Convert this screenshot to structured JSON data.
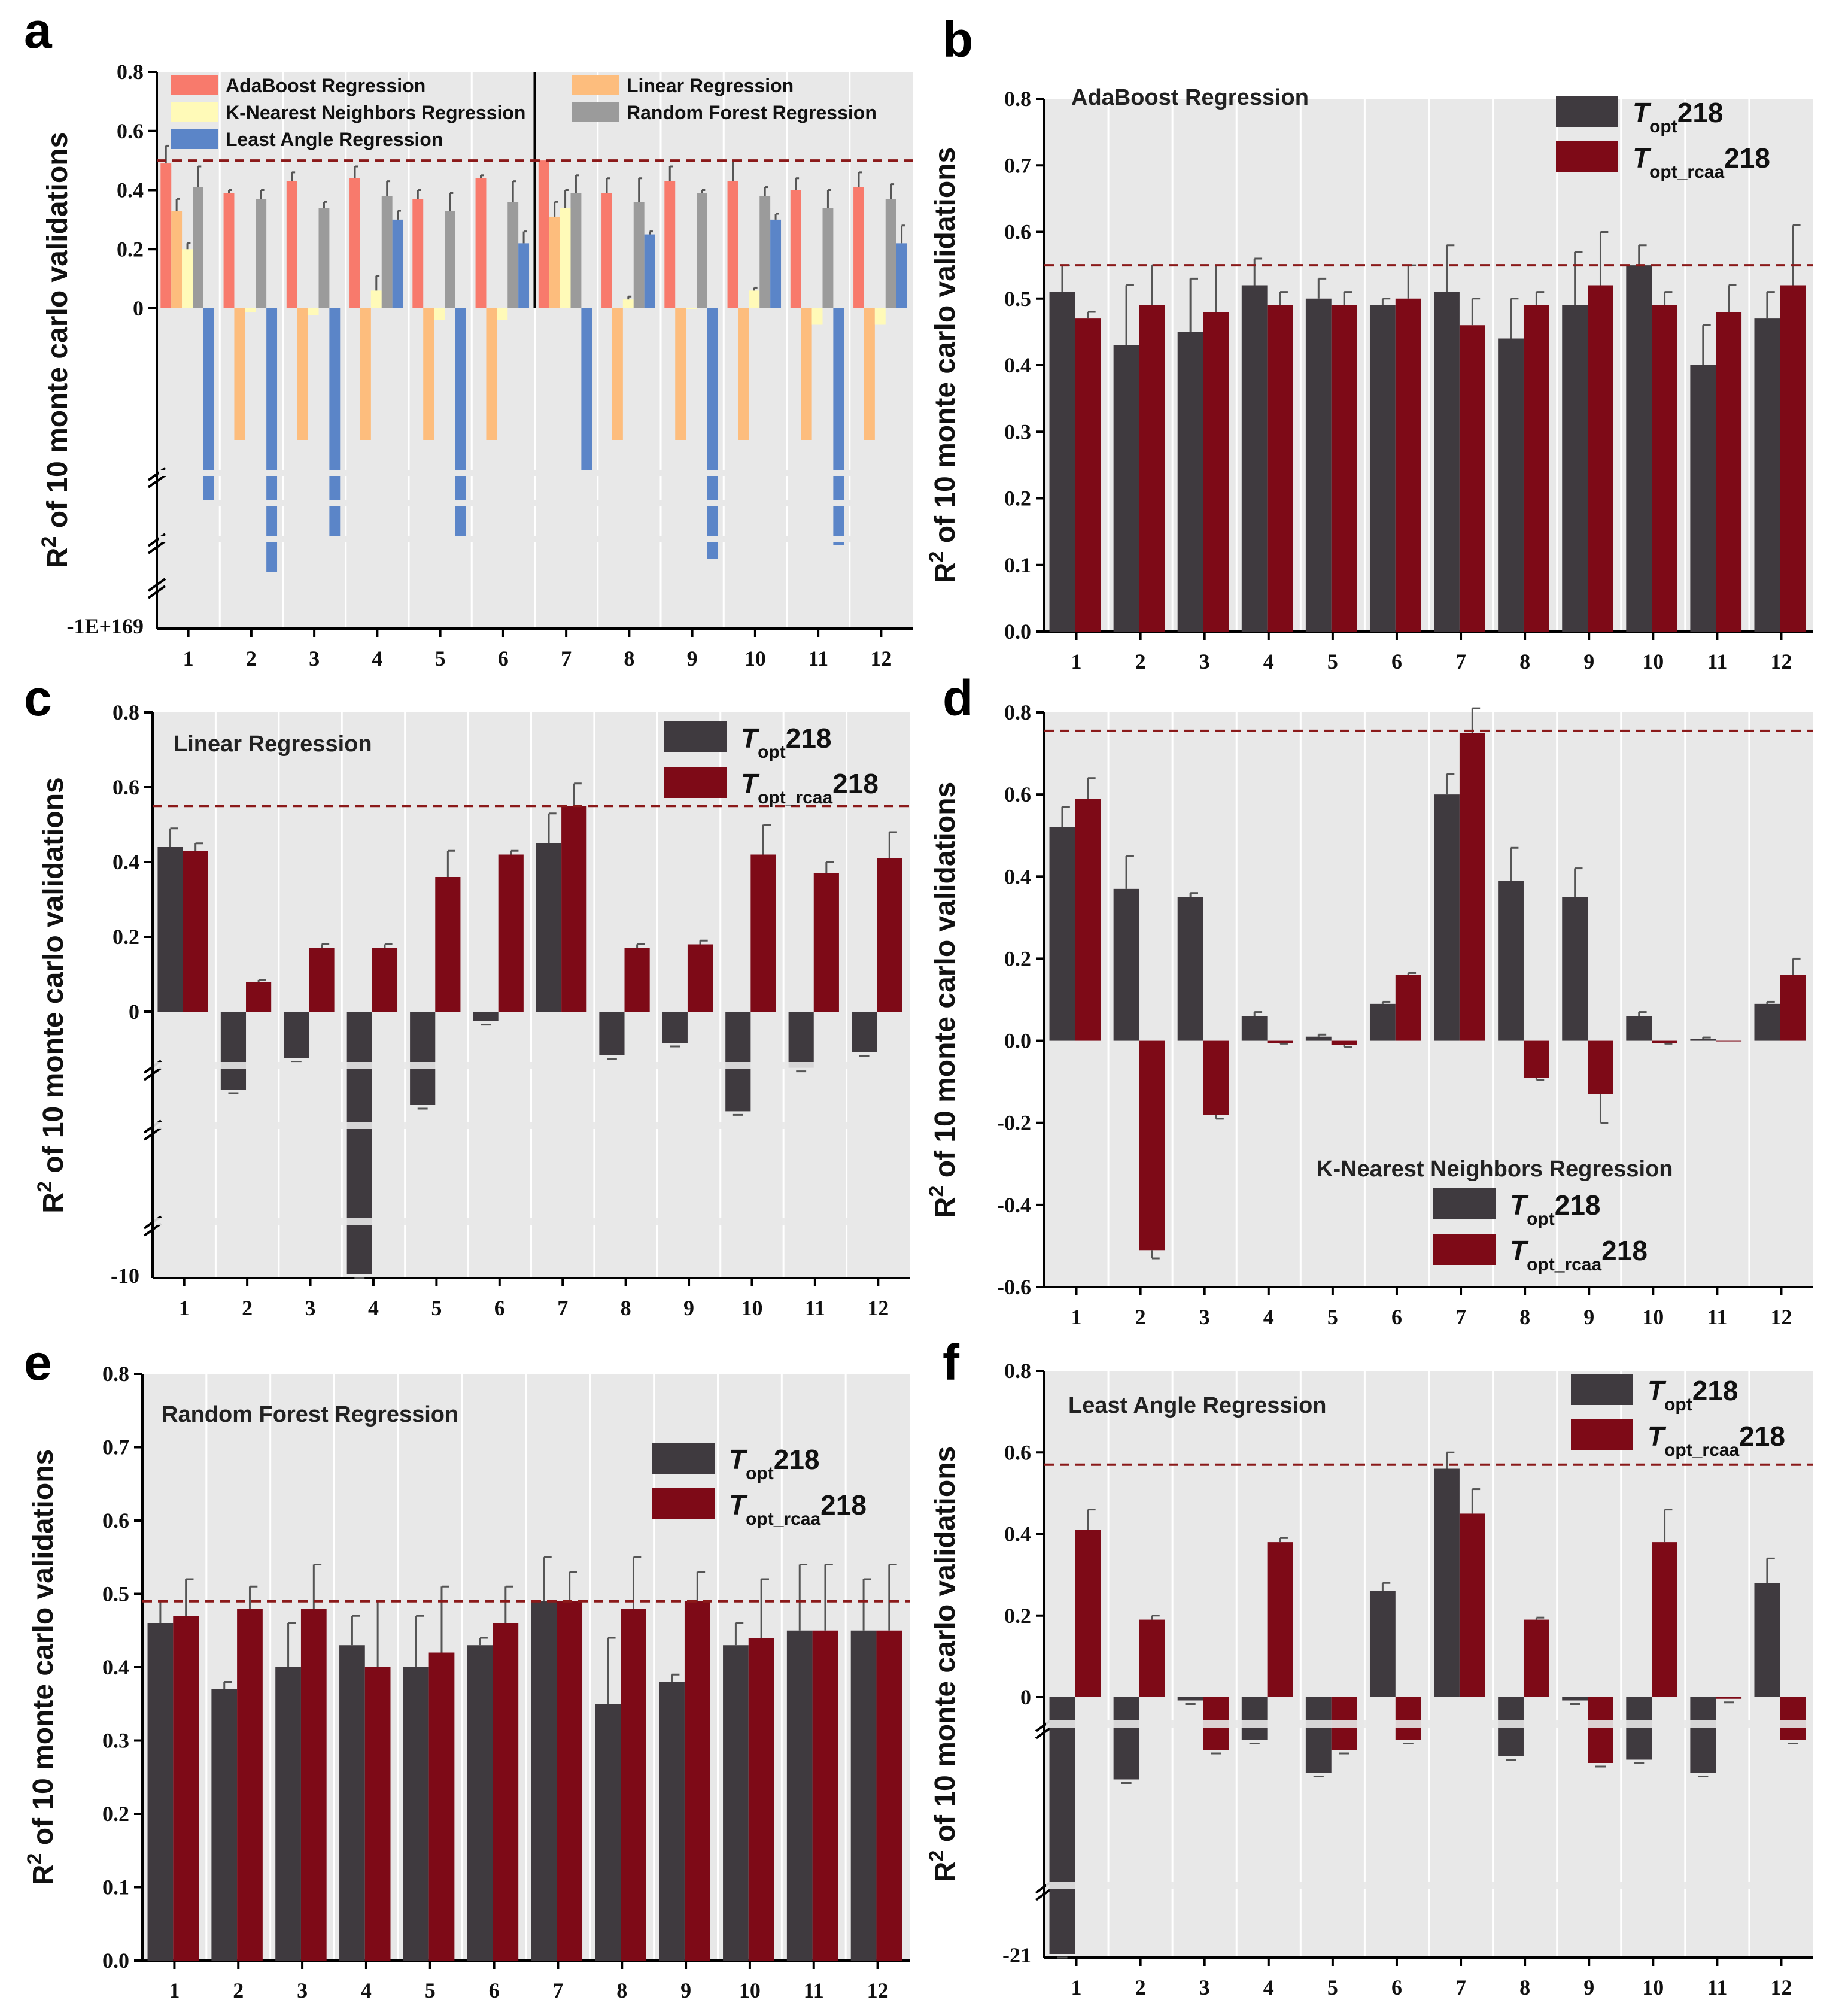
{
  "figure": {
    "y_axis_label_main": "R",
    "y_axis_label_sup": "2",
    "y_axis_label_rest": " of 10 monte carlo validations",
    "x_categories": [
      "1",
      "2",
      "3",
      "4",
      "5",
      "6",
      "7",
      "8",
      "9",
      "10",
      "11",
      "12"
    ]
  },
  "colors": {
    "topt": "#3f3a3f",
    "topt_rcaa": "#7e0a17",
    "ada": "#f87a6c",
    "linear": "#fdbd7d",
    "knn": "#fffab8",
    "rf": "#9b9b9b",
    "lar": "#5b85c8",
    "refline": "#8b1a1a"
  },
  "legend_two": {
    "s1_T": "T",
    "s1_sub": "opt",
    "s1_num": "218",
    "s2_T": "T",
    "s2_sub": "opt_rcaa",
    "s2_num": "218"
  },
  "chart_data": [
    {
      "panel": "a",
      "type": "bar",
      "title": "",
      "legend": [
        "AdaBoost Regression",
        "Linear Regression",
        "K-Nearest Neighbors Regression",
        "Random Forest Regression",
        "Least Angle Regression"
      ],
      "yticks": [
        "0.8",
        "0.6",
        "0.4",
        "0.2",
        "0"
      ],
      "ybottom_label": "-1E+169",
      "reference_line": 0.5,
      "note": "axis broken below 0; groups 1-6 use T_opt218 and 7-12 use T_opt_rcaa218",
      "series": [
        {
          "name": "AdaBoost Regression",
          "values": [
            0.49,
            0.39,
            0.43,
            0.44,
            0.37,
            0.44,
            0.5,
            0.39,
            0.43,
            0.43,
            0.4,
            0.41
          ],
          "err": [
            0.06,
            0.01,
            0.03,
            0.04,
            0.03,
            0.01,
            0.0,
            0.05,
            0.05,
            0.07,
            0.04,
            0.05
          ]
        },
        {
          "name": "Linear Regression",
          "values": [
            0.33,
            -2,
            -2,
            -2,
            -2,
            -2,
            0.31,
            -2,
            -2,
            -2,
            -2,
            -2
          ],
          "err": [
            0.04,
            0,
            0,
            0,
            0,
            0,
            0.05,
            0,
            0,
            0,
            0,
            0
          ]
        },
        {
          "name": "K-Nearest Neighbors Regression",
          "values": [
            0.2,
            -0.06,
            -0.1,
            0.06,
            -0.18,
            -0.18,
            0.34,
            0.03,
            0.0,
            0.06,
            -0.25,
            -0.25
          ],
          "err": [
            0.02,
            0.02,
            0.04,
            0.05,
            0.04,
            0.05,
            0.06,
            0.01,
            0.0,
            0.01,
            0.04,
            0.05
          ]
        },
        {
          "name": "Random Forest Regression",
          "values": [
            0.41,
            0.37,
            0.34,
            0.38,
            0.33,
            0.36,
            0.39,
            0.36,
            0.39,
            0.38,
            0.34,
            0.37
          ],
          "err": [
            0.07,
            0.03,
            0.02,
            0.05,
            0.06,
            0.07,
            0.06,
            0.08,
            0.01,
            0.03,
            0.06,
            0.05
          ]
        },
        {
          "name": "Least Angle Regression",
          "values": [
            -3,
            -4,
            -3.5,
            0.3,
            -3.5,
            0.22,
            -2.5,
            0.25,
            -3.8,
            0.3,
            -3.6,
            0.22
          ],
          "err": [
            0,
            0,
            0,
            0.03,
            0,
            0.04,
            0,
            0.01,
            0,
            0.02,
            0,
            0.06
          ]
        }
      ]
    },
    {
      "panel": "b",
      "type": "bar",
      "title": "AdaBoost Regression",
      "ylim": [
        0,
        0.8
      ],
      "yticks": [
        "0.0",
        "0.1",
        "0.2",
        "0.3",
        "0.4",
        "0.5",
        "0.6",
        "0.7",
        "0.8"
      ],
      "reference_line": 0.55,
      "series": [
        {
          "name": "Topt218",
          "values": [
            0.51,
            0.43,
            0.45,
            0.52,
            0.5,
            0.49,
            0.51,
            0.44,
            0.49,
            0.55,
            0.4,
            0.47
          ],
          "err": [
            0.04,
            0.09,
            0.08,
            0.04,
            0.03,
            0.01,
            0.07,
            0.06,
            0.08,
            0.03,
            0.06,
            0.04
          ]
        },
        {
          "name": "Topt_rcaa218",
          "values": [
            0.47,
            0.49,
            0.48,
            0.49,
            0.49,
            0.5,
            0.46,
            0.49,
            0.52,
            0.49,
            0.48,
            0.52
          ],
          "err": [
            0.01,
            0.06,
            0.07,
            0.02,
            0.02,
            0.05,
            0.04,
            0.02,
            0.08,
            0.02,
            0.04,
            0.09
          ]
        }
      ]
    },
    {
      "panel": "c",
      "type": "bar",
      "title": "Linear Regression",
      "yticks": [
        "0",
        "0.2",
        "0.4",
        "0.6",
        "0.8"
      ],
      "ybottom_label": "-10",
      "reference_line": 0.55,
      "note": "axis broken below 0",
      "series": [
        {
          "name": "Topt218",
          "values": [
            0.44,
            -2.5,
            -1.5,
            -9.5,
            -3.0,
            -0.3,
            0.45,
            -1.4,
            -1.0,
            -3.2,
            -1.8,
            -1.3
          ],
          "err": [
            0.05,
            0,
            0,
            0,
            0,
            0,
            0.08,
            0,
            0,
            0,
            0,
            0
          ]
        },
        {
          "name": "Topt_rcaa218",
          "values": [
            0.43,
            0.08,
            0.17,
            0.17,
            0.36,
            0.42,
            0.55,
            0.17,
            0.18,
            0.42,
            0.37,
            0.41
          ],
          "err": [
            0.02,
            0.005,
            0.01,
            0.01,
            0.07,
            0.01,
            0.06,
            0.01,
            0.01,
            0.08,
            0.03,
            0.07
          ]
        }
      ]
    },
    {
      "panel": "d",
      "type": "bar",
      "title": "K-Nearest Neighbors Regression",
      "ylim": [
        -0.6,
        0.8
      ],
      "yticks": [
        "-0.6",
        "-0.4",
        "-0.2",
        "0.0",
        "0.2",
        "0.4",
        "0.6",
        "0.8"
      ],
      "reference_line": 0.755,
      "series": [
        {
          "name": "Topt218",
          "values": [
            0.52,
            0.37,
            0.35,
            0.06,
            0.01,
            0.09,
            0.6,
            0.39,
            0.35,
            0.06,
            0.005,
            0.09
          ],
          "err": [
            0.05,
            0.08,
            0.01,
            0.01,
            0.005,
            0.005,
            0.05,
            0.08,
            0.07,
            0.01,
            0.003,
            0.005
          ]
        },
        {
          "name": "Topt_rcaa218",
          "values": [
            0.59,
            -0.51,
            -0.18,
            -0.005,
            -0.01,
            0.16,
            0.75,
            -0.09,
            -0.13,
            -0.005,
            0.0,
            0.16
          ],
          "err": [
            0.05,
            0.02,
            0.01,
            0.002,
            0.005,
            0.005,
            0.06,
            0.005,
            0.07,
            0.002,
            0.0,
            0.04
          ]
        }
      ]
    },
    {
      "panel": "e",
      "type": "bar",
      "title": "Random Forest Regression",
      "ylim": [
        0,
        0.8
      ],
      "yticks": [
        "0.0",
        "0.1",
        "0.2",
        "0.3",
        "0.4",
        "0.5",
        "0.6",
        "0.7",
        "0.8"
      ],
      "reference_line": 0.49,
      "series": [
        {
          "name": "Topt218",
          "values": [
            0.46,
            0.37,
            0.4,
            0.43,
            0.4,
            0.43,
            0.49,
            0.35,
            0.38,
            0.43,
            0.45,
            0.45
          ],
          "err": [
            0.03,
            0.01,
            0.06,
            0.04,
            0.07,
            0.01,
            0.06,
            0.09,
            0.01,
            0.03,
            0.09,
            0.07
          ]
        },
        {
          "name": "Topt_rcaa218",
          "values": [
            0.47,
            0.48,
            0.48,
            0.4,
            0.42,
            0.46,
            0.49,
            0.48,
            0.49,
            0.44,
            0.45,
            0.45
          ],
          "err": [
            0.05,
            0.03,
            0.06,
            0.09,
            0.09,
            0.05,
            0.04,
            0.07,
            0.04,
            0.08,
            0.09,
            0.09
          ]
        }
      ]
    },
    {
      "panel": "f",
      "type": "bar",
      "title": "Least Angle Regression",
      "yticks": [
        "0",
        "0.2",
        "0.4",
        "0.6",
        "0.8"
      ],
      "ybottom_label": "-21",
      "reference_line": 0.57,
      "note": "axis broken below 0",
      "series": [
        {
          "name": "Topt218",
          "values": [
            -20.5,
            -2.5,
            -0.1,
            -1.3,
            -2.3,
            0.26,
            0.56,
            -1.8,
            -0.1,
            -1.9,
            -2.3,
            0.28
          ],
          "err": [
            0,
            0,
            0,
            0,
            0,
            0.02,
            0.04,
            0,
            0,
            0,
            0,
            0.06
          ]
        },
        {
          "name": "Topt_rcaa218",
          "values": [
            0.41,
            0.19,
            -1.6,
            0.38,
            -1.6,
            -1.3,
            0.45,
            0.19,
            -2.0,
            0.38,
            -0.05,
            -1.3
          ],
          "err": [
            0.05,
            0.01,
            0,
            0.01,
            0,
            0,
            0.06,
            0.005,
            0,
            0.08,
            0,
            0
          ]
        }
      ]
    }
  ]
}
